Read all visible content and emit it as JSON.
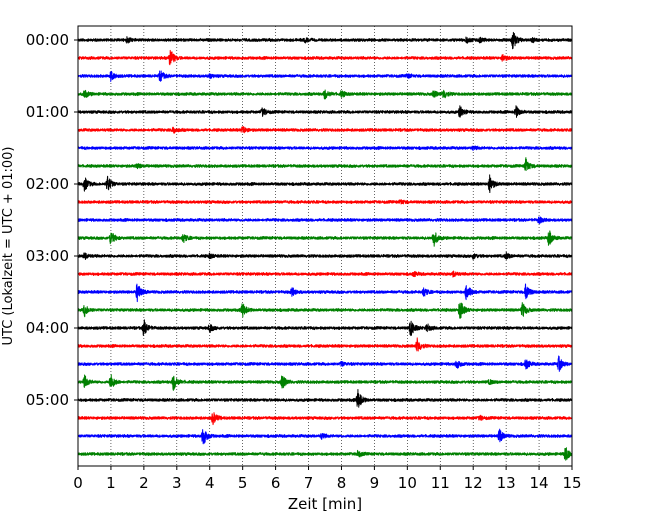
{
  "chart_data": {
    "type": "line",
    "title": "",
    "xlabel": "Zeit  [min]",
    "ylabel": "UTC (Lokalzeit = UTC + 01:00)",
    "xlim": [
      0,
      15
    ],
    "x_ticks": [
      0,
      1,
      2,
      3,
      4,
      5,
      6,
      7,
      8,
      9,
      10,
      11,
      12,
      13,
      14,
      15
    ],
    "y_tick_labels": [
      "00:00",
      "01:00",
      "02:00",
      "03:00",
      "04:00",
      "05:00"
    ],
    "grid": "vertical dotted lines at each minute",
    "colors": [
      "#000000",
      "#ff0000",
      "#0000ff",
      "#008000"
    ],
    "traces": [
      {
        "start": "00:00",
        "color": "#000000",
        "events": [
          [
            1.5,
            0.25
          ],
          [
            6.9,
            0.2
          ],
          [
            11.8,
            0.25
          ],
          [
            12.2,
            0.25
          ],
          [
            13.2,
            1.0
          ],
          [
            13.8,
            0.2
          ]
        ]
      },
      {
        "start": "00:15",
        "color": "#ff0000",
        "events": [
          [
            2.8,
            1.0
          ],
          [
            12.9,
            0.35
          ]
        ]
      },
      {
        "start": "00:30",
        "color": "#0000ff",
        "events": [
          [
            1.0,
            0.45
          ],
          [
            2.5,
            0.55
          ],
          [
            4.0,
            0.2
          ],
          [
            10.0,
            0.2
          ]
        ]
      },
      {
        "start": "00:45",
        "color": "#008000",
        "events": [
          [
            0.2,
            0.4
          ],
          [
            7.5,
            0.5
          ],
          [
            8.0,
            0.3
          ],
          [
            10.8,
            0.3
          ],
          [
            11.1,
            0.45
          ]
        ]
      },
      {
        "start": "01:00",
        "color": "#000000",
        "events": [
          [
            5.6,
            0.4
          ],
          [
            11.6,
            0.6
          ],
          [
            13.3,
            0.55
          ]
        ]
      },
      {
        "start": "01:15",
        "color": "#ff0000",
        "events": [
          [
            2.9,
            0.3
          ],
          [
            5.0,
            0.4
          ]
        ]
      },
      {
        "start": "01:30",
        "color": "#0000ff",
        "events": [
          [
            12.0,
            0.15
          ]
        ]
      },
      {
        "start": "01:45",
        "color": "#008000",
        "events": [
          [
            1.8,
            0.2
          ],
          [
            13.6,
            0.7
          ]
        ]
      },
      {
        "start": "02:00",
        "color": "#000000",
        "events": [
          [
            0.2,
            0.7
          ],
          [
            0.9,
            0.8
          ],
          [
            12.5,
            0.9
          ]
        ]
      },
      {
        "start": "02:15",
        "color": "#ff0000",
        "events": [
          [
            9.8,
            0.2
          ]
        ]
      },
      {
        "start": "02:30",
        "color": "#0000ff",
        "events": [
          [
            14.0,
            0.3
          ]
        ]
      },
      {
        "start": "02:45",
        "color": "#008000",
        "events": [
          [
            1.0,
            0.7
          ],
          [
            3.2,
            0.4
          ],
          [
            10.8,
            0.85
          ],
          [
            14.3,
            0.8
          ]
        ]
      },
      {
        "start": "03:00",
        "color": "#000000",
        "events": [
          [
            0.2,
            0.3
          ],
          [
            4.0,
            0.2
          ],
          [
            12.0,
            0.25
          ],
          [
            13.0,
            0.3
          ]
        ]
      },
      {
        "start": "03:15",
        "color": "#ff0000",
        "events": [
          [
            10.2,
            0.2
          ],
          [
            11.4,
            0.25
          ]
        ]
      },
      {
        "start": "03:30",
        "color": "#0000ff",
        "events": [
          [
            1.8,
            0.95
          ],
          [
            6.5,
            0.4
          ],
          [
            10.5,
            0.4
          ],
          [
            11.8,
            0.9
          ],
          [
            13.6,
            0.85
          ]
        ]
      },
      {
        "start": "03:45",
        "color": "#008000",
        "events": [
          [
            0.2,
            0.6
          ],
          [
            5.0,
            0.7
          ],
          [
            11.6,
            1.0
          ],
          [
            13.5,
            0.75
          ]
        ]
      },
      {
        "start": "04:00",
        "color": "#000000",
        "events": [
          [
            2.0,
            0.8
          ],
          [
            4.0,
            0.35
          ],
          [
            10.1,
            0.9
          ],
          [
            10.6,
            0.35
          ]
        ]
      },
      {
        "start": "04:15",
        "color": "#ff0000",
        "events": [
          [
            10.3,
            0.7
          ]
        ]
      },
      {
        "start": "04:30",
        "color": "#0000ff",
        "events": [
          [
            8.0,
            0.2
          ],
          [
            11.5,
            0.45
          ],
          [
            13.6,
            0.5
          ],
          [
            14.6,
            0.75
          ]
        ]
      },
      {
        "start": "04:45",
        "color": "#008000",
        "events": [
          [
            0.2,
            0.6
          ],
          [
            1.0,
            0.8
          ],
          [
            2.9,
            0.85
          ],
          [
            6.2,
            0.7
          ],
          [
            12.5,
            0.2
          ]
        ]
      },
      {
        "start": "05:00",
        "color": "#000000",
        "events": [
          [
            8.5,
            1.0
          ]
        ]
      },
      {
        "start": "05:15",
        "color": "#ff0000",
        "events": [
          [
            4.1,
            0.65
          ],
          [
            12.2,
            0.2
          ]
        ]
      },
      {
        "start": "05:30",
        "color": "#0000ff",
        "events": [
          [
            3.8,
            1.0
          ],
          [
            7.4,
            0.25
          ],
          [
            12.8,
            0.65
          ]
        ]
      },
      {
        "start": "05:45",
        "color": "#008000",
        "events": [
          [
            8.5,
            0.3
          ],
          [
            14.8,
            0.8
          ]
        ]
      }
    ]
  }
}
